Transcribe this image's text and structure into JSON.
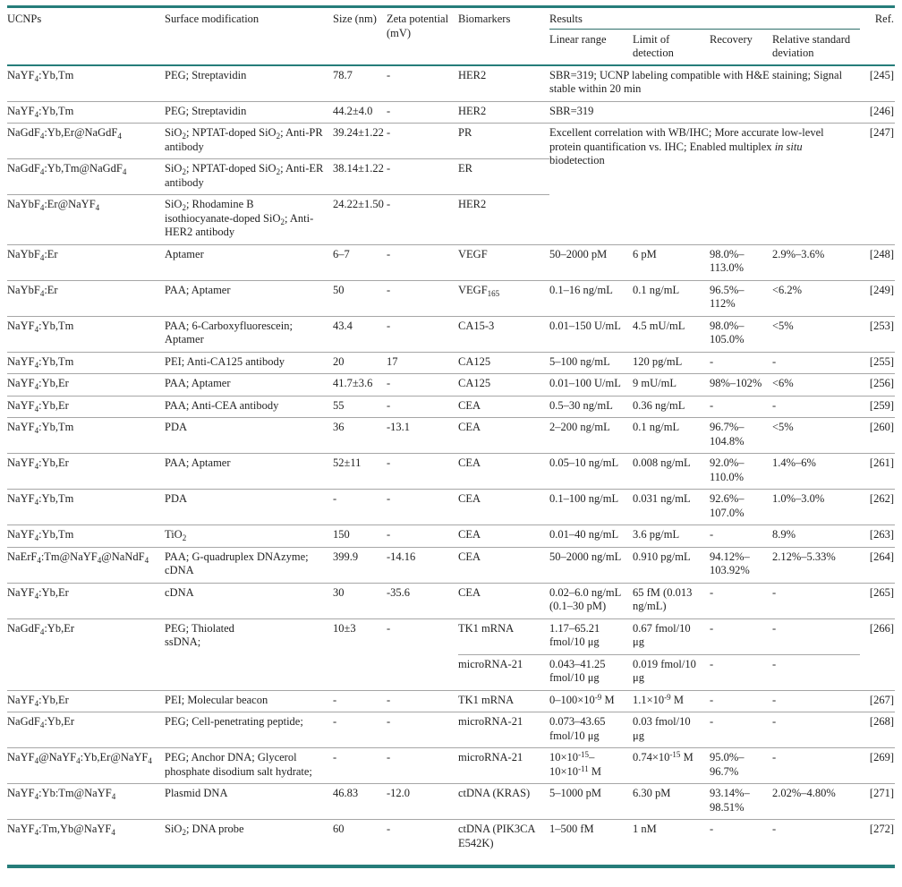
{
  "colors": {
    "accent_teal": "#267d7a",
    "row_divider_gray": "#a6a6a6",
    "results_underline": "#2f6f6a",
    "text": "#222222"
  },
  "table": {
    "column_headers": [
      "UCNPs",
      "Surface modification",
      "Size (nm)",
      "Zeta potential (mV)",
      "Biomarkers"
    ],
    "results_group_header": "Results",
    "results_subheaders": [
      "Linear range",
      "Limit of detection",
      "Recovery",
      "Relative standard deviation"
    ],
    "ref_header": "Ref.",
    "rows": [
      [
        "NaYF~4~:Yb,Tm",
        "PEG; Streptavidin",
        "78.7",
        "-",
        "HER2",
        {
          "t": "SBR=319; UCNP labeling compatible with H&E staining; Signal stable within 20 min",
          "cs": 4
        },
        "[245]"
      ],
      [
        "NaYF~4~:Yb,Tm",
        "PEG; Streptavidin",
        "44.2±4.0",
        "-",
        "HER2",
        {
          "t": "SBR=319",
          "cs": 4
        },
        "[246]"
      ],
      [
        "NaGdF~4~:Yb,Er@NaGdF~4~",
        "SiO~2~; NPTAT-doped SiO~2~; Anti-PR antibody",
        "39.24±1.22",
        "-",
        "PR",
        {
          "t": "Excellent correlation with WB/IHC; More accurate low-level protein quantification vs. IHC; Enabled multiplex *in situ* biodetection",
          "cs": 4,
          "rs": 3
        },
        {
          "t": "[247]",
          "rs": 3
        }
      ],
      [
        "NaGdF~4~:Yb,Tm@NaGdF~4~",
        "SiO~2~; NPTAT-doped SiO~2~; Anti-ER antibody",
        "38.14±1.22",
        "-",
        "ER"
      ],
      [
        "NaYbF~4~:Er@NaYF~4~",
        "SiO~2~; Rhodamine B isothiocyanate-doped SiO~2~; Anti-HER2 antibody",
        "24.22±1.50",
        "-",
        "HER2"
      ],
      [
        "NaYbF~4~:Er",
        "Aptamer",
        "6–7",
        "-",
        "VEGF",
        "50–2000 pM",
        "6 pM",
        "98.0%–113.0%",
        "2.9%–3.6%",
        "[248]"
      ],
      [
        "NaYbF~4~:Er",
        "PAA; Aptamer",
        "50",
        "-",
        "VEGF~165~",
        "0.1–16 ng/mL",
        "0.1 ng/mL",
        "96.5%–112%",
        "<6.2%",
        "[249]"
      ],
      [
        "NaYF~4~:Yb,Tm",
        "PAA; 6-Carboxyfluorescein; Aptamer",
        "43.4",
        "-",
        "CA15-3",
        "0.01–150 U/mL",
        "4.5 mU/mL",
        "98.0%–105.0%",
        "<5%",
        "[253]"
      ],
      [
        "NaYF~4~:Yb,Tm",
        "PEI; Anti-CA125 antibody",
        "20",
        "17",
        "CA125",
        "5–100 ng/mL",
        "120 pg/mL",
        "-",
        "-",
        "[255]"
      ],
      [
        "NaYF~4~:Yb,Er",
        "PAA; Aptamer",
        "41.7±3.6",
        "-",
        "CA125",
        "0.01–100 U/mL",
        "9 mU/mL",
        "98%–102%",
        "<6%",
        "[256]"
      ],
      [
        "NaYF~4~:Yb,Er",
        "PAA; Anti-CEA antibody",
        "55",
        "-",
        "CEA",
        "0.5–30 ng/mL",
        "0.36 ng/mL",
        "-",
        "-",
        "[259]"
      ],
      [
        "NaYF~4~:Yb,Tm",
        "PDA",
        "36",
        "-13.1",
        "CEA",
        "2–200 ng/mL",
        "0.1 ng/mL",
        "96.7%–104.8%",
        "<5%",
        "[260]"
      ],
      [
        "NaYF~4~:Yb,Er",
        "PAA; Aptamer",
        "52±11",
        "-",
        "CEA",
        "0.05–10 ng/mL",
        "0.008 ng/mL",
        "92.0%–110.0%",
        "1.4%–6%",
        "[261]"
      ],
      [
        "NaYF~4~:Yb,Tm",
        "PDA",
        "-",
        "-",
        "CEA",
        "0.1–100 ng/mL",
        "0.031 ng/mL",
        "92.6%–107.0%",
        "1.0%–3.0%",
        "[262]"
      ],
      [
        "NaYF~4~:Yb,Tm",
        "TiO~2~",
        "150",
        "-",
        "CEA",
        "0.01–40 ng/mL",
        "3.6 pg/mL",
        "-",
        "8.9%",
        "[263]"
      ],
      [
        "NaErF~4~:Tm@NaYF~4~@NaNdF~4~",
        "PAA; G-quadruplex DNAzyme; cDNA",
        "399.9",
        "-14.16",
        "CEA",
        "50–2000 ng/mL",
        "0.910 pg/mL",
        "94.12%–103.92%",
        "2.12%–5.33%",
        "[264]"
      ],
      [
        "NaYF~4~:Yb,Er",
        "cDNA",
        "30",
        "-35.6",
        "CEA",
        "0.02–6.0 ng/mL (0.1–30 pM)",
        "65 fM (0.013 ng/mL)",
        "-",
        "-",
        "[265]"
      ],
      [
        {
          "t": "NaGdF~4~:Yb,Er",
          "rs": 2
        },
        {
          "t": "PEG; Thiolated\nssDNA;",
          "rs": 2
        },
        {
          "t": "10±3",
          "rs": 2
        },
        {
          "t": "-",
          "rs": 2
        },
        "TK1 mRNA",
        "1.17–65.21 fmol/10 μg",
        "0.67 fmol/10 μg",
        "-",
        "-",
        {
          "t": "[266]",
          "rs": 2
        }
      ],
      [
        "microRNA-21",
        "0.043–41.25 fmol/10 μg",
        "0.019 fmol/10 μg",
        "-",
        "-"
      ],
      [
        "NaYF~4~:Yb,Er",
        "PEI; Molecular beacon",
        "-",
        "-",
        "TK1 mRNA",
        "0–100×10^-9^ M",
        "1.1×10^-9^ M",
        "-",
        "-",
        "[267]"
      ],
      [
        "NaGdF~4~:Yb,Er",
        "PEG; Cell-penetrating peptide;",
        "-",
        "-",
        "microRNA-21",
        "0.073–43.65 fmol/10 μg",
        "0.03 fmol/10 μg",
        "-",
        "-",
        "[268]"
      ],
      [
        "NaYF~4~@NaYF~4~:Yb,Er@NaYF~4~",
        "PEG; Anchor DNA; Glycerol phosphate disodium salt hydrate;",
        "-",
        "-",
        "microRNA-21",
        "10×10^-15^–\n10×10^-11^ M",
        "0.74×10^-15^ M",
        "95.0%–96.7%",
        "-",
        "[269]"
      ],
      [
        "NaYF~4~:Yb:Tm@NaYF~4~",
        "Plasmid DNA",
        "46.83",
        "-12.0",
        "ctDNA (KRAS)",
        "5–1000 pM",
        "6.30 pM",
        "93.14%–98.51%",
        "2.02%–4.80%",
        "[271]"
      ],
      [
        "NaYF~4~:Tm,Yb@NaYF~4~",
        "SiO~2~; DNA probe",
        "60",
        "-",
        "ctDNA (PIK3CA E542K)",
        "1–500 fM",
        "1 nM",
        "-",
        "-",
        "[272]"
      ]
    ]
  }
}
